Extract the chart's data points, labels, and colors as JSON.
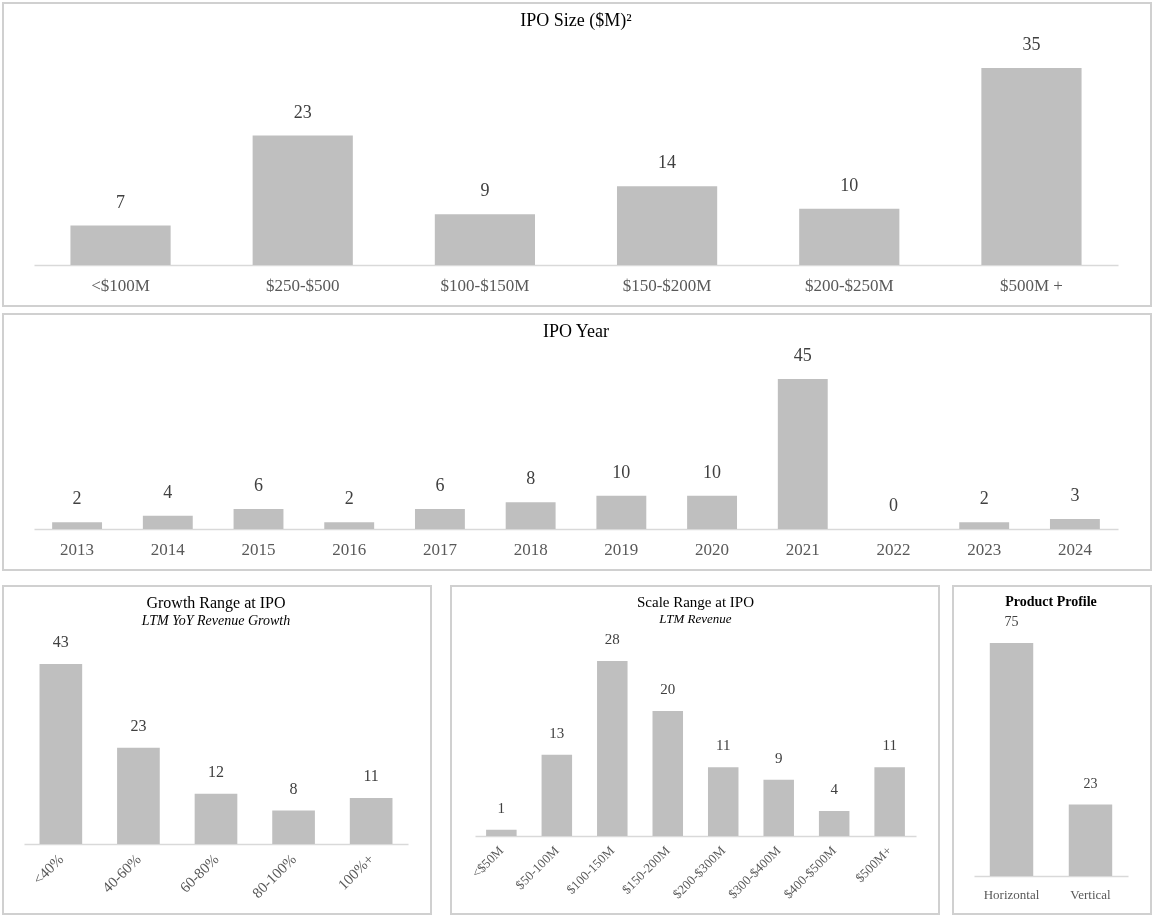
{
  "chart_data": [
    {
      "type": "bar",
      "title": "IPO Size ($M)²",
      "categories": [
        "<$100M",
        "$250-$500",
        "$100-$150M",
        "$150-$200M",
        "$200-$250M",
        "$500M +"
      ],
      "values": [
        7,
        23,
        9,
        14,
        10,
        35
      ],
      "color": "#bfbfbf",
      "data_labels": true
    },
    {
      "type": "bar",
      "title": "IPO Year",
      "categories": [
        "2013",
        "2014",
        "2015",
        "2016",
        "2017",
        "2018",
        "2019",
        "2020",
        "2021",
        "2022",
        "2023",
        "2024"
      ],
      "values": [
        2,
        4,
        6,
        2,
        6,
        8,
        10,
        10,
        45,
        0,
        2,
        3
      ],
      "color": "#bfbfbf",
      "data_labels": true
    },
    {
      "type": "bar",
      "title": "Growth Range at IPO",
      "subtitle": "LTM YoY Revenue Growth",
      "categories": [
        "<40%",
        "40-60%",
        "60-80%",
        "80-100%",
        "100%+"
      ],
      "values": [
        43,
        23,
        12,
        8,
        11
      ],
      "color": "#bfbfbf",
      "data_labels": true
    },
    {
      "type": "bar",
      "title": "Scale Range at IPO",
      "subtitle": "LTM Revenue",
      "categories": [
        "<$50M",
        "$50-100M",
        "$100-150M",
        "$150-200M",
        "$200-$300M",
        "$300-$400M",
        "$400-$500M",
        "$500M+"
      ],
      "values": [
        1,
        13,
        28,
        20,
        11,
        9,
        4,
        11
      ],
      "color": "#bfbfbf",
      "data_labels": true
    },
    {
      "type": "bar",
      "title": "Product Profile",
      "categories": [
        "Horizontal",
        "Vertical"
      ],
      "values": [
        75,
        23
      ],
      "color": "#bfbfbf",
      "data_labels": true
    }
  ]
}
